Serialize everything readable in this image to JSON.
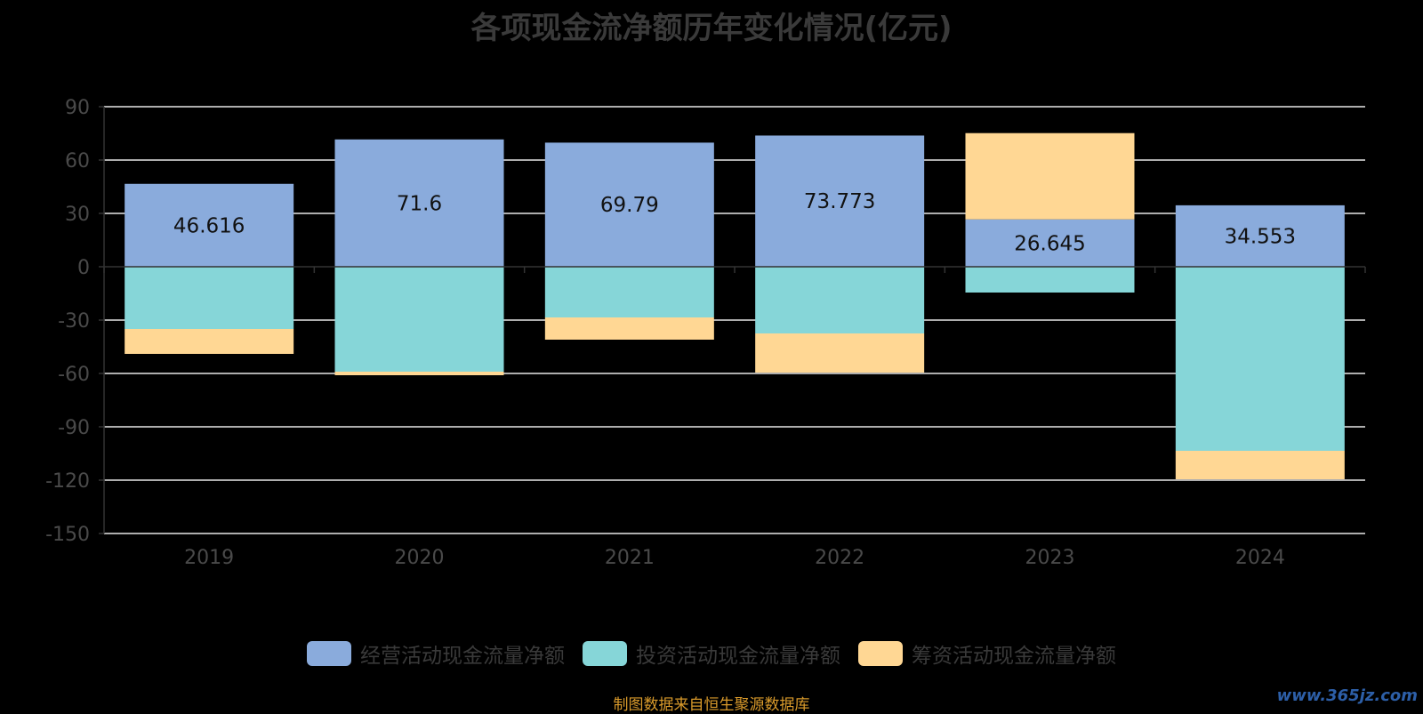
{
  "chart_data": {
    "type": "bar",
    "stacked": true,
    "title": "各项现金流净额历年变化情况(亿元)",
    "categories": [
      "2019",
      "2020",
      "2021",
      "2022",
      "2023",
      "2024"
    ],
    "series": [
      {
        "name": "经营活动现金流量净额",
        "color": "#8aabdc",
        "values": [
          46.616,
          71.6,
          69.79,
          73.773,
          26.645,
          34.553
        ]
      },
      {
        "name": "投资活动现金流量净额",
        "color": "#86d6d8",
        "values": [
          -35,
          -59,
          -28.5,
          -37.5,
          -14.5,
          -103.5
        ]
      },
      {
        "name": "筹资活动现金流量净额",
        "color": "#ffd794",
        "values": [
          -14,
          -2,
          -12.5,
          -22,
          48.5,
          -16
        ]
      }
    ],
    "data_labels": [
      "46.616",
      "71.6",
      "69.79",
      "73.773",
      "26.645",
      "34.553"
    ],
    "ylim": [
      -150,
      90
    ],
    "yticks": [
      90,
      60,
      30,
      0,
      -30,
      -60,
      -90,
      -120,
      -150
    ],
    "grid": true,
    "legend_position": "bottom"
  },
  "footer": {
    "source": "制图数据来自恒生聚源数据库",
    "watermark": "www.365jz.com"
  }
}
